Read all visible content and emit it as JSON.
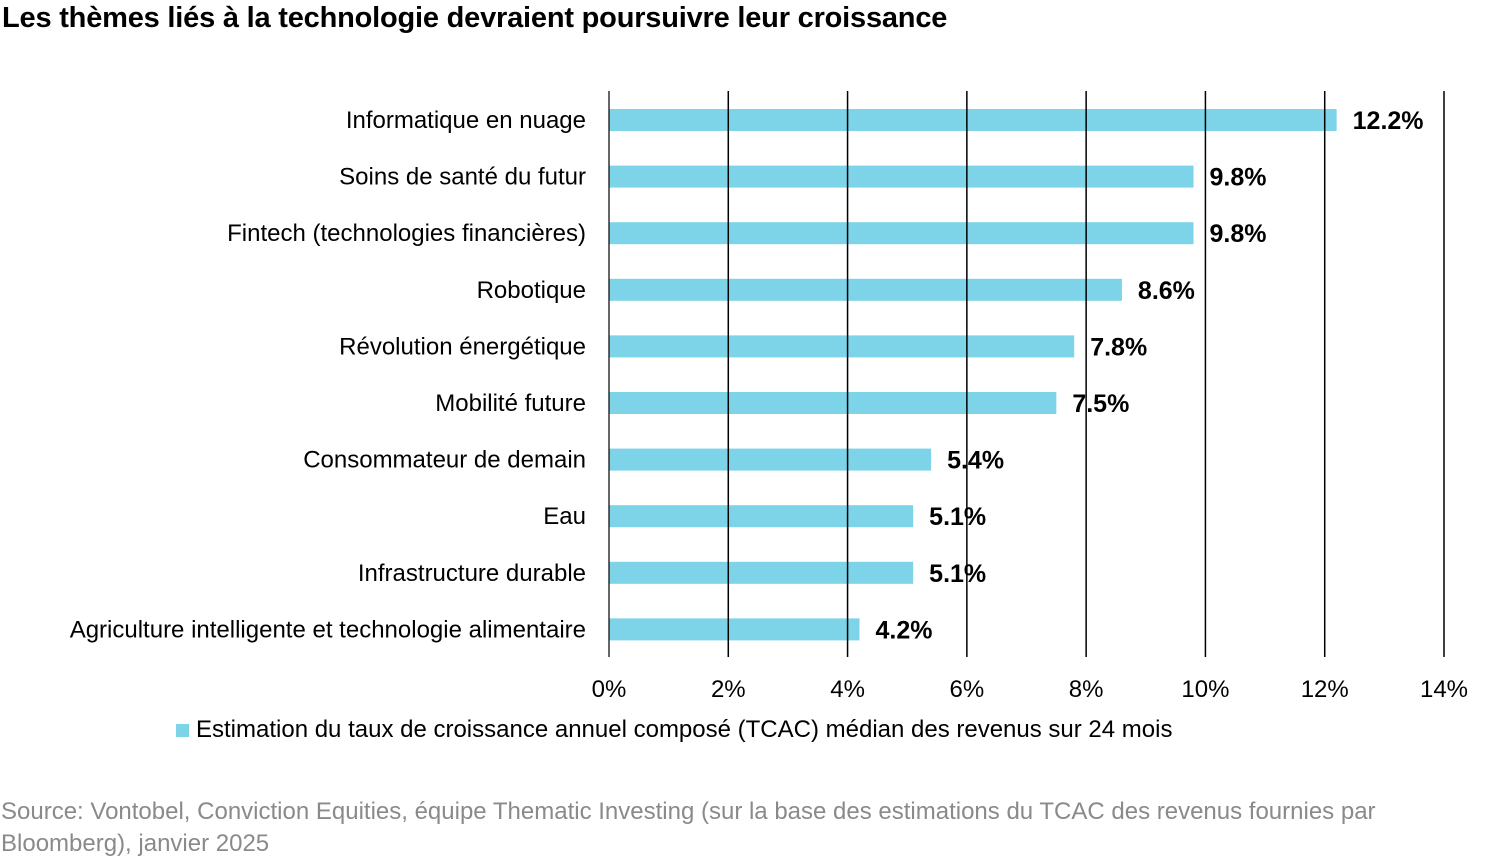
{
  "title": "Les thèmes liés à la technologie devraient poursuivre leur croissance",
  "chart_data": {
    "type": "bar",
    "orientation": "horizontal",
    "categories": [
      "Informatique en nuage",
      "Soins de santé du futur",
      "Fintech (technologies financières)",
      "Robotique",
      "Révolution énergétique",
      "Mobilité future",
      "Consommateur de demain",
      "Eau",
      "Infrastructure durable",
      "Agriculture intelligente et technologie alimentaire"
    ],
    "series": [
      {
        "name": "Estimation du taux de croissance annuel composé (TCAC) médian des revenus sur 24 mois",
        "values": [
          12.2,
          9.8,
          9.8,
          8.6,
          7.8,
          7.5,
          5.4,
          5.1,
          5.1,
          4.2
        ],
        "labels": [
          "12.2%",
          "9.8%",
          "9.8%",
          "8.6%",
          "7.8%",
          "7.5%",
          "5.4%",
          "5.1%",
          "5.1%",
          "4.2%"
        ],
        "color": "#7dd3e8"
      }
    ],
    "xlim": [
      0,
      14
    ],
    "x_ticks": [
      0,
      2,
      4,
      6,
      8,
      10,
      12,
      14
    ],
    "x_tick_labels": [
      "0%",
      "2%",
      "4%",
      "6%",
      "8%",
      "10%",
      "12%",
      "14%"
    ],
    "grid": "vertical",
    "legend_position": "bottom"
  },
  "source": "Source: Vontobel, Conviction Equities, équipe Thematic Investing (sur la base des estimations du TCAC des revenus fournies par Bloomberg), janvier 2025"
}
